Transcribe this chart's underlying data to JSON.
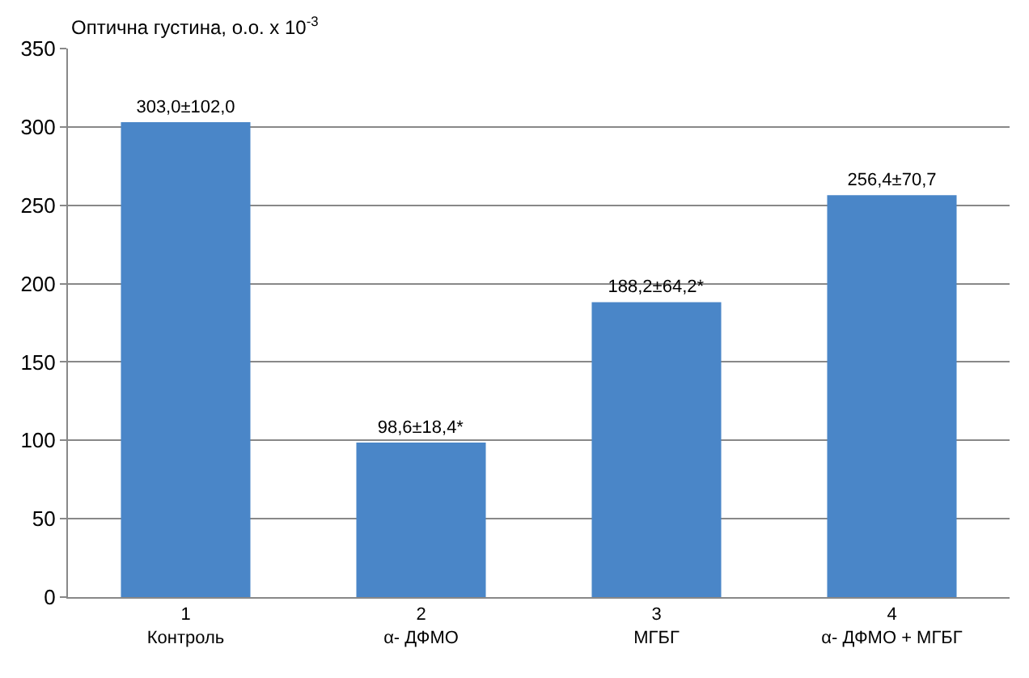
{
  "chart_data": {
    "type": "bar",
    "ylabel": "Оптична густина, о.о. x 10$^{-3}$",
    "categories": [
      "1\nКонтроль",
      "2\nα- ДФМО",
      "3\nМГБГ",
      "4\nα- ДФМО + МГБГ"
    ],
    "values": [
      303.0,
      98.6,
      188.2,
      256.4
    ],
    "value_labels": [
      "303,0±102,0",
      "98,6±18,4*",
      "188,2±64,2*",
      "256,4±70,7"
    ],
    "color": "#4a86c8",
    "ylim": [
      0,
      350
    ],
    "yticks": [
      0,
      50,
      100,
      150,
      200,
      250,
      300,
      350
    ],
    "grid": "y",
    "legend": false
  }
}
